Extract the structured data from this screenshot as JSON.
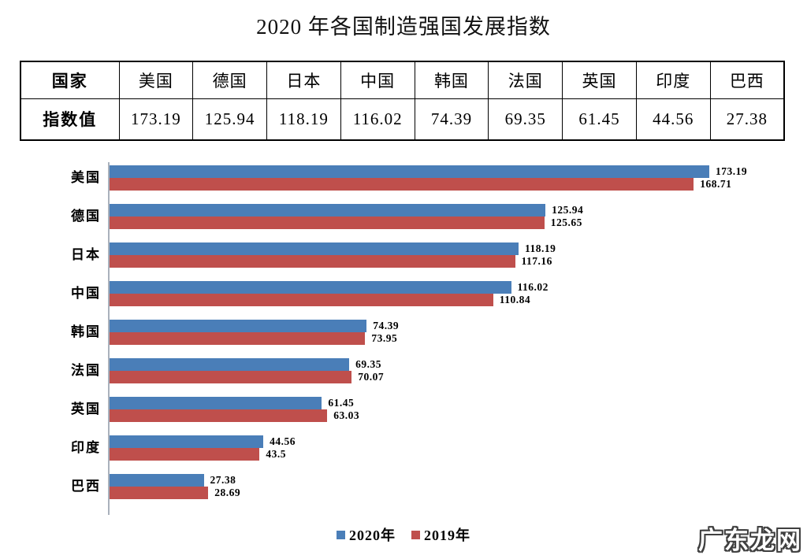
{
  "title": "2020 年各国制造强国发展指数",
  "table": {
    "corner_label": "国家",
    "row_label": "指数值",
    "countries": [
      "美国",
      "德国",
      "日本",
      "中国",
      "韩国",
      "法国",
      "英国",
      "印度",
      "巴西"
    ],
    "values": [
      "173.19",
      "125.94",
      "118.19",
      "116.02",
      "74.39",
      "69.35",
      "61.45",
      "44.56",
      "27.38"
    ]
  },
  "chart_data": {
    "type": "bar",
    "orientation": "horizontal",
    "title": "2020 年各国制造强国发展指数",
    "categories": [
      "美国",
      "德国",
      "日本",
      "中国",
      "韩国",
      "法国",
      "英国",
      "印度",
      "巴西"
    ],
    "series": [
      {
        "name": "2020年",
        "color": "#4A7EB8",
        "values": [
          173.19,
          125.94,
          118.19,
          116.02,
          74.39,
          69.35,
          61.45,
          44.56,
          27.38
        ]
      },
      {
        "name": "2019年",
        "color": "#BF4F4C",
        "values": [
          168.71,
          125.65,
          117.16,
          110.84,
          73.95,
          70.07,
          63.03,
          43.5,
          28.69
        ]
      }
    ],
    "value_labels_shown": true,
    "legend_position": "bottom",
    "axis": {
      "ticks_shown": false,
      "gridlines": false
    }
  },
  "watermark": "广东龙网",
  "colors": {
    "series_2020": "#4A7EB8",
    "series_2019": "#BF4F4C",
    "axis_line": "#a9b1bc"
  }
}
